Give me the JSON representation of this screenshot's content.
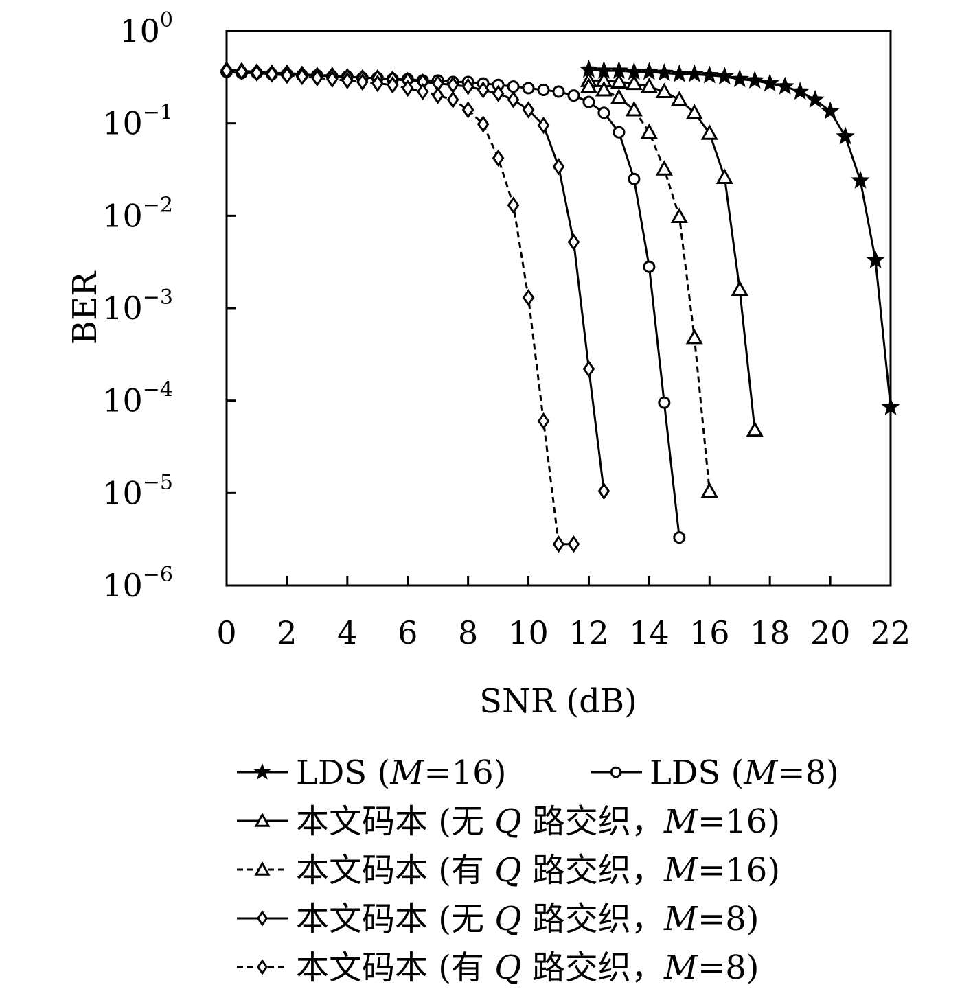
{
  "chart_data": {
    "type": "line",
    "xlabel": "SNR (dB)",
    "ylabel": "BER",
    "xlim": [
      0,
      22
    ],
    "ylim": [
      1e-06,
      1
    ],
    "yscale": "log",
    "grid": false,
    "legend_position": "bottom",
    "x_ticks": [
      "0",
      "2",
      "4",
      "6",
      "8",
      "10",
      "12",
      "14",
      "16",
      "18",
      "20",
      "22"
    ],
    "y_ticks": [
      {
        "base": "10",
        "exp": "0"
      },
      {
        "base": "10",
        "exp": "−1"
      },
      {
        "base": "10",
        "exp": "−2"
      },
      {
        "base": "10",
        "exp": "−3"
      },
      {
        "base": "10",
        "exp": "−4"
      },
      {
        "base": "10",
        "exp": "−5"
      },
      {
        "base": "10",
        "exp": "−6"
      }
    ],
    "series": [
      {
        "name": "LDS (M=16)",
        "legend_parts": [
          "LDS (",
          "M",
          "=16)"
        ],
        "marker": "star",
        "dash": "solid",
        "x": [
          12,
          12.5,
          13,
          13.5,
          14,
          14.5,
          15,
          15.5,
          16,
          16.5,
          17,
          17.5,
          18,
          18.5,
          19,
          19.5,
          20,
          20.5,
          21,
          21.5,
          22
        ],
        "y": [
          0.38,
          0.37,
          0.37,
          0.36,
          0.36,
          0.35,
          0.34,
          0.34,
          0.33,
          0.32,
          0.3,
          0.29,
          0.27,
          0.25,
          0.22,
          0.18,
          0.135,
          0.072,
          0.024,
          0.0033,
          8.5e-05
        ]
      },
      {
        "name": "LDS (M=8)",
        "legend_parts": [
          "LDS (",
          "M",
          "=8)"
        ],
        "marker": "circle",
        "dash": "solid",
        "x": [
          0,
          0.5,
          1,
          1.5,
          2,
          2.5,
          3,
          3.5,
          4,
          4.5,
          5,
          5.5,
          6,
          6.5,
          7,
          7.5,
          8,
          8.5,
          9,
          9.5,
          10,
          10.5,
          11,
          11.5,
          12,
          12.5,
          13,
          13.5,
          14,
          14.5,
          15
        ],
        "y": [
          0.36,
          0.35,
          0.35,
          0.34,
          0.34,
          0.33,
          0.33,
          0.32,
          0.32,
          0.31,
          0.31,
          0.3,
          0.3,
          0.29,
          0.29,
          0.28,
          0.28,
          0.27,
          0.26,
          0.25,
          0.24,
          0.23,
          0.22,
          0.2,
          0.17,
          0.13,
          0.08,
          0.025,
          0.0028,
          9.5e-05,
          3.3e-06
        ]
      },
      {
        "name": "本文码本 (无 Q 路交织，M=16)",
        "legend_parts": [
          "本文码本 (无 ",
          "Q",
          " 路交织，",
          "M",
          "=16)"
        ],
        "marker": "triangle",
        "dash": "solid",
        "x": [
          12,
          12.5,
          13,
          13.5,
          14,
          14.5,
          15,
          15.5,
          16,
          16.5,
          17,
          17.5
        ],
        "y": [
          0.29,
          0.29,
          0.28,
          0.27,
          0.25,
          0.22,
          0.18,
          0.13,
          0.078,
          0.026,
          0.0016,
          4.8e-05
        ]
      },
      {
        "name": "本文码本 (有 Q 路交织，M=16)",
        "legend_parts": [
          "本文码本 (有 ",
          "Q",
          " 路交织，",
          "M",
          "=16)"
        ],
        "marker": "triangle",
        "dash": "dashed",
        "x": [
          12,
          12.5,
          13,
          13.5,
          14,
          14.5,
          15,
          15.5,
          16
        ],
        "y": [
          0.25,
          0.23,
          0.19,
          0.14,
          0.08,
          0.032,
          0.0098,
          0.00048,
          1.05e-05
        ]
      },
      {
        "name": "本文码本 (无 Q 路交织，M=8)",
        "legend_parts": [
          "本文码本 (无 ",
          "Q",
          " 路交织，",
          "M",
          "=8)"
        ],
        "marker": "diamond",
        "dash": "solid",
        "x": [
          0,
          0.5,
          1,
          1.5,
          2,
          2.5,
          3,
          3.5,
          4,
          4.5,
          5,
          5.5,
          6,
          6.5,
          7,
          7.5,
          8,
          8.5,
          9,
          9.5,
          10,
          10.5,
          11,
          11.5,
          12,
          12.5
        ],
        "y": [
          0.38,
          0.37,
          0.36,
          0.35,
          0.35,
          0.34,
          0.33,
          0.33,
          0.32,
          0.31,
          0.31,
          0.3,
          0.29,
          0.28,
          0.27,
          0.26,
          0.25,
          0.23,
          0.21,
          0.18,
          0.14,
          0.095,
          0.034,
          0.0052,
          0.00022,
          1.05e-05
        ]
      },
      {
        "name": "本文码本 (有 Q 路交织，M=8)",
        "legend_parts": [
          "本文码本 (有 ",
          "Q",
          " 路交织，",
          "M",
          "=8)"
        ],
        "marker": "diamond",
        "dash": "dashed",
        "x": [
          0,
          0.5,
          1,
          1.5,
          2,
          2.5,
          3,
          3.5,
          4,
          4.5,
          5,
          5.5,
          6,
          6.5,
          7,
          7.5,
          8,
          8.5,
          9,
          9.5,
          10,
          10.5,
          11,
          11.5
        ],
        "y": [
          0.37,
          0.36,
          0.35,
          0.34,
          0.33,
          0.32,
          0.31,
          0.3,
          0.29,
          0.28,
          0.27,
          0.26,
          0.24,
          0.22,
          0.2,
          0.18,
          0.14,
          0.098,
          0.042,
          0.013,
          0.0013,
          6e-05,
          2.8e-06,
          2.8e-06
        ]
      }
    ]
  }
}
